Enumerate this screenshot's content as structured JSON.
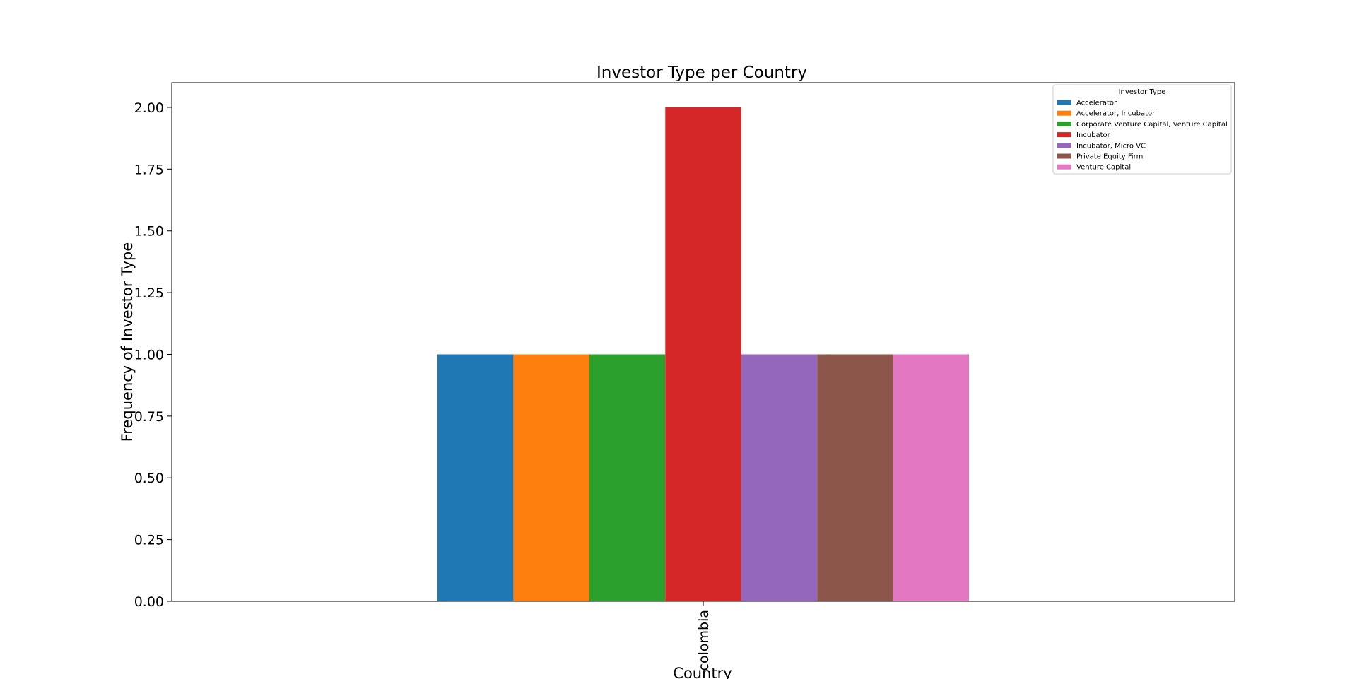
{
  "chart_data": {
    "type": "bar",
    "title": "Investor Type per Country",
    "xlabel": "Country",
    "ylabel": "Frequency of Investor Type",
    "categories": [
      "colombia"
    ],
    "ylim": [
      0,
      2.1
    ],
    "yticks": [
      "0.00",
      "0.25",
      "0.50",
      "0.75",
      "1.00",
      "1.25",
      "1.50",
      "1.75",
      "2.00"
    ],
    "grid": false,
    "legend": {
      "title": "Investor Type",
      "placement": "top-right"
    },
    "series": [
      {
        "name": "Accelerator",
        "values": [
          1
        ],
        "color": "#1f77b4"
      },
      {
        "name": "Accelerator, Incubator",
        "values": [
          1
        ],
        "color": "#ff7f0e"
      },
      {
        "name": "Corporate Venture Capital, Venture Capital",
        "values": [
          1
        ],
        "color": "#2ca02c"
      },
      {
        "name": "Incubator",
        "values": [
          2
        ],
        "color": "#d62728"
      },
      {
        "name": "Incubator, Micro VC",
        "values": [
          1
        ],
        "color": "#9467bd"
      },
      {
        "name": "Private Equity Firm",
        "values": [
          1
        ],
        "color": "#8c564b"
      },
      {
        "name": "Venture Capital",
        "values": [
          1
        ],
        "color": "#e377c2"
      }
    ]
  }
}
